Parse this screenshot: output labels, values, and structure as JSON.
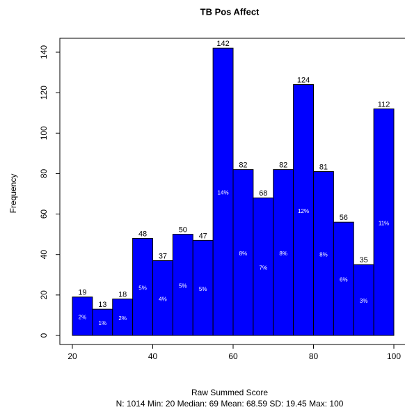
{
  "chart_data": {
    "type": "histogram",
    "title": "TB Pos Affect",
    "xlabel": "Raw Summed Score",
    "ylabel": "Frequency",
    "subtitle": "N: 1014 Min: 20  Median: 69  Mean: 68.59  SD: 19.45  Max: 100",
    "bins": [
      20,
      25,
      30,
      35,
      40,
      45,
      50,
      55,
      60,
      65,
      70,
      75,
      80,
      85,
      90,
      95,
      100
    ],
    "values": [
      19,
      13,
      18,
      48,
      37,
      50,
      47,
      142,
      82,
      68,
      82,
      124,
      81,
      56,
      35,
      112
    ],
    "percent_labels": [
      "2%",
      "1%",
      "2%",
      "5%",
      "4%",
      "5%",
      "5%",
      "14%",
      "8%",
      "7%",
      "8%",
      "12%",
      "8%",
      "6%",
      "3%",
      "11%"
    ],
    "color": "#0000ff",
    "xlim": [
      20,
      100
    ],
    "xticks": [
      20,
      40,
      60,
      80,
      100
    ],
    "ylim": [
      0,
      140
    ],
    "yticks": [
      0,
      20,
      40,
      60,
      80,
      100,
      120,
      140
    ]
  }
}
